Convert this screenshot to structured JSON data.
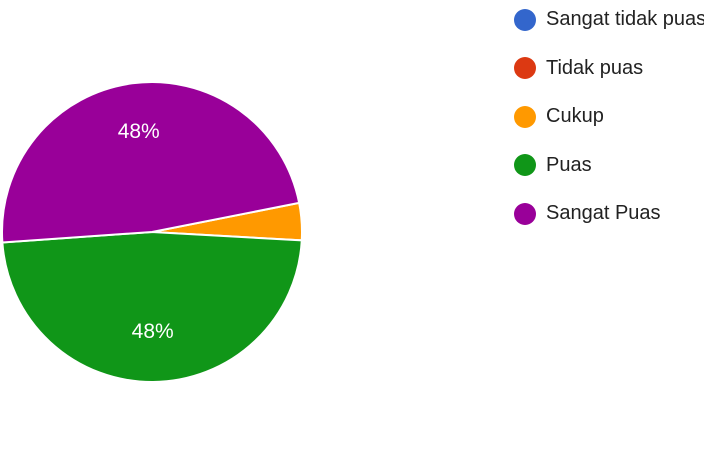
{
  "chart_data": {
    "type": "pie",
    "categories": [
      "Sangat tidak puas",
      "Tidak puas",
      "Cukup",
      "Puas",
      "Sangat Puas"
    ],
    "values": [
      0,
      0,
      4,
      48,
      48
    ],
    "colors": [
      "#3366cc",
      "#dc3912",
      "#ff9900",
      "#109618",
      "#990099"
    ],
    "slice_labels": [
      "",
      "",
      "",
      "48%",
      "48%"
    ],
    "legend_placement": "right"
  }
}
